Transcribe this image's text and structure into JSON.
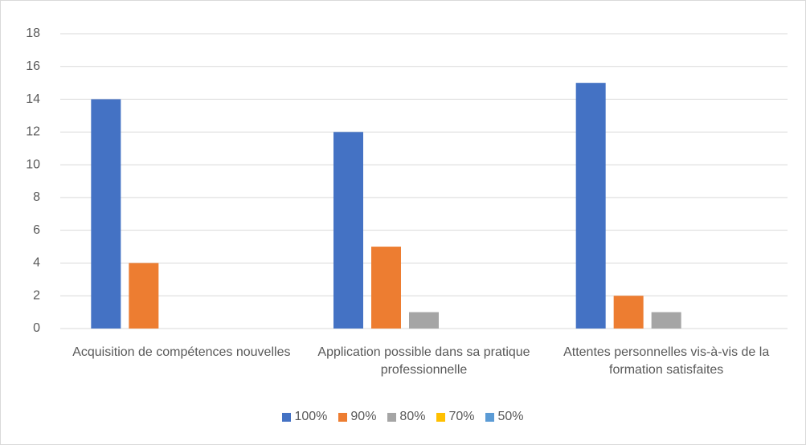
{
  "chart_data": {
    "type": "bar",
    "categories": [
      "Acquisition de compétences nouvelles",
      "Application possible dans sa pratique professionnelle",
      "Attentes personnelles vis-à-vis de la formation satisfaites"
    ],
    "series": [
      {
        "name": "100%",
        "color": "#4472c4",
        "values": [
          14,
          12,
          15
        ]
      },
      {
        "name": "90%",
        "color": "#ed7d31",
        "values": [
          4,
          5,
          2
        ]
      },
      {
        "name": "80%",
        "color": "#a5a5a5",
        "values": [
          0,
          1,
          1
        ]
      },
      {
        "name": "70%",
        "color": "#ffc000",
        "values": [
          0,
          0,
          0
        ]
      },
      {
        "name": "50%",
        "color": "#5b9bd5",
        "values": [
          0,
          0,
          0
        ]
      }
    ],
    "ylim": [
      0,
      18
    ],
    "yticks": [
      0,
      2,
      4,
      6,
      8,
      10,
      12,
      14,
      16,
      18
    ],
    "grid": true,
    "legend": "bottom"
  }
}
